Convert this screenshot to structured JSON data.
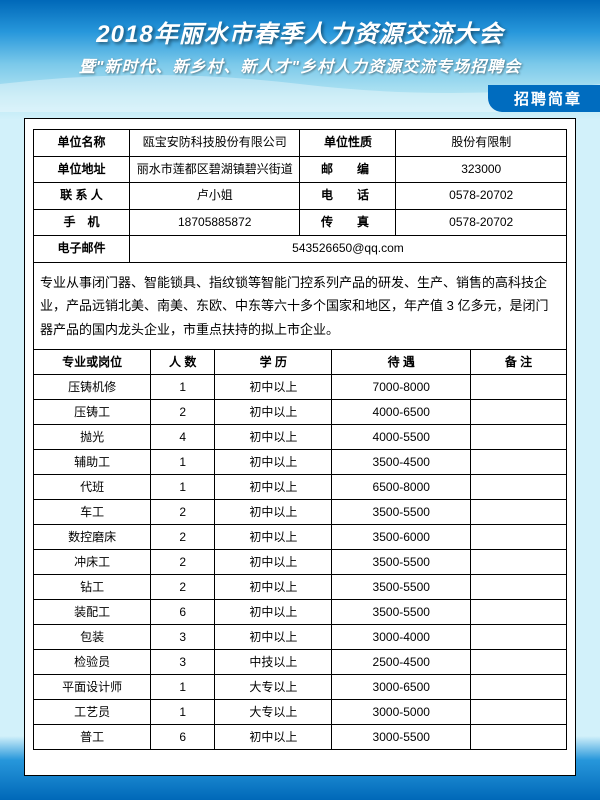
{
  "header": {
    "title_main": "2018年丽水市春季人力资源交流大会",
    "title_sub": "暨\"新时代、新乡村、新人才\"乡村人力资源交流专场招聘会",
    "ribbon": "招聘简章"
  },
  "colors": {
    "primary_blue": "#006cbf",
    "light_cyan": "#d2f1fa",
    "border": "#000000",
    "text_white": "#ffffff"
  },
  "company": {
    "labels": {
      "name": "单位名称",
      "name_val": "瓯宝安防科技股份有限公司",
      "nature": "单位性质",
      "nature_val": "股份有限制",
      "address": "单位地址",
      "address_val": "丽水市莲都区碧湖镇碧兴街道",
      "postcode": "邮　编",
      "postcode_val": "323000",
      "contact": "联 系 人",
      "contact_val": "卢小姐",
      "phone": "电　话",
      "phone_val": "0578-20702",
      "mobile": "手　机",
      "mobile_val": "18705885872",
      "fax": "传　真",
      "fax_val": "0578-20702",
      "email": "电子邮件",
      "email_val": "543526650@qq.com"
    },
    "description": "专业从事闭门器、智能锁具、指纹锁等智能门控系列产品的研发、生产、销售的高科技企业，产品远销北美、南美、东欧、中东等六十多个国家和地区，年产值 3 亿多元，是闭门器产品的国内龙头企业，市重点扶持的拟上市企业。"
  },
  "jobs": {
    "columns": [
      "专业或岗位",
      "人 数",
      "学 历",
      "待 遇",
      "备 注"
    ],
    "col_widths": [
      "22%",
      "12%",
      "22%",
      "26%",
      "18%"
    ],
    "rows": [
      [
        "压铸机修",
        "1",
        "初中以上",
        "7000-8000",
        ""
      ],
      [
        "压铸工",
        "2",
        "初中以上",
        "4000-6500",
        ""
      ],
      [
        "抛光",
        "4",
        "初中以上",
        "4000-5500",
        ""
      ],
      [
        "辅助工",
        "1",
        "初中以上",
        "3500-4500",
        ""
      ],
      [
        "代班",
        "1",
        "初中以上",
        "6500-8000",
        ""
      ],
      [
        "车工",
        "2",
        "初中以上",
        "3500-5500",
        ""
      ],
      [
        "数控磨床",
        "2",
        "初中以上",
        "3500-6000",
        ""
      ],
      [
        "冲床工",
        "2",
        "初中以上",
        "3500-5500",
        ""
      ],
      [
        "钻工",
        "2",
        "初中以上",
        "3500-5500",
        ""
      ],
      [
        "装配工",
        "6",
        "初中以上",
        "3500-5500",
        ""
      ],
      [
        "包装",
        "3",
        "初中以上",
        "3000-4000",
        ""
      ],
      [
        "检验员",
        "3",
        "中技以上",
        "2500-4500",
        ""
      ],
      [
        "平面设计师",
        "1",
        "大专以上",
        "3000-6500",
        ""
      ],
      [
        "工艺员",
        "1",
        "大专以上",
        "3000-5000",
        ""
      ],
      [
        "普工",
        "6",
        "初中以上",
        "3000-5500",
        ""
      ]
    ]
  }
}
